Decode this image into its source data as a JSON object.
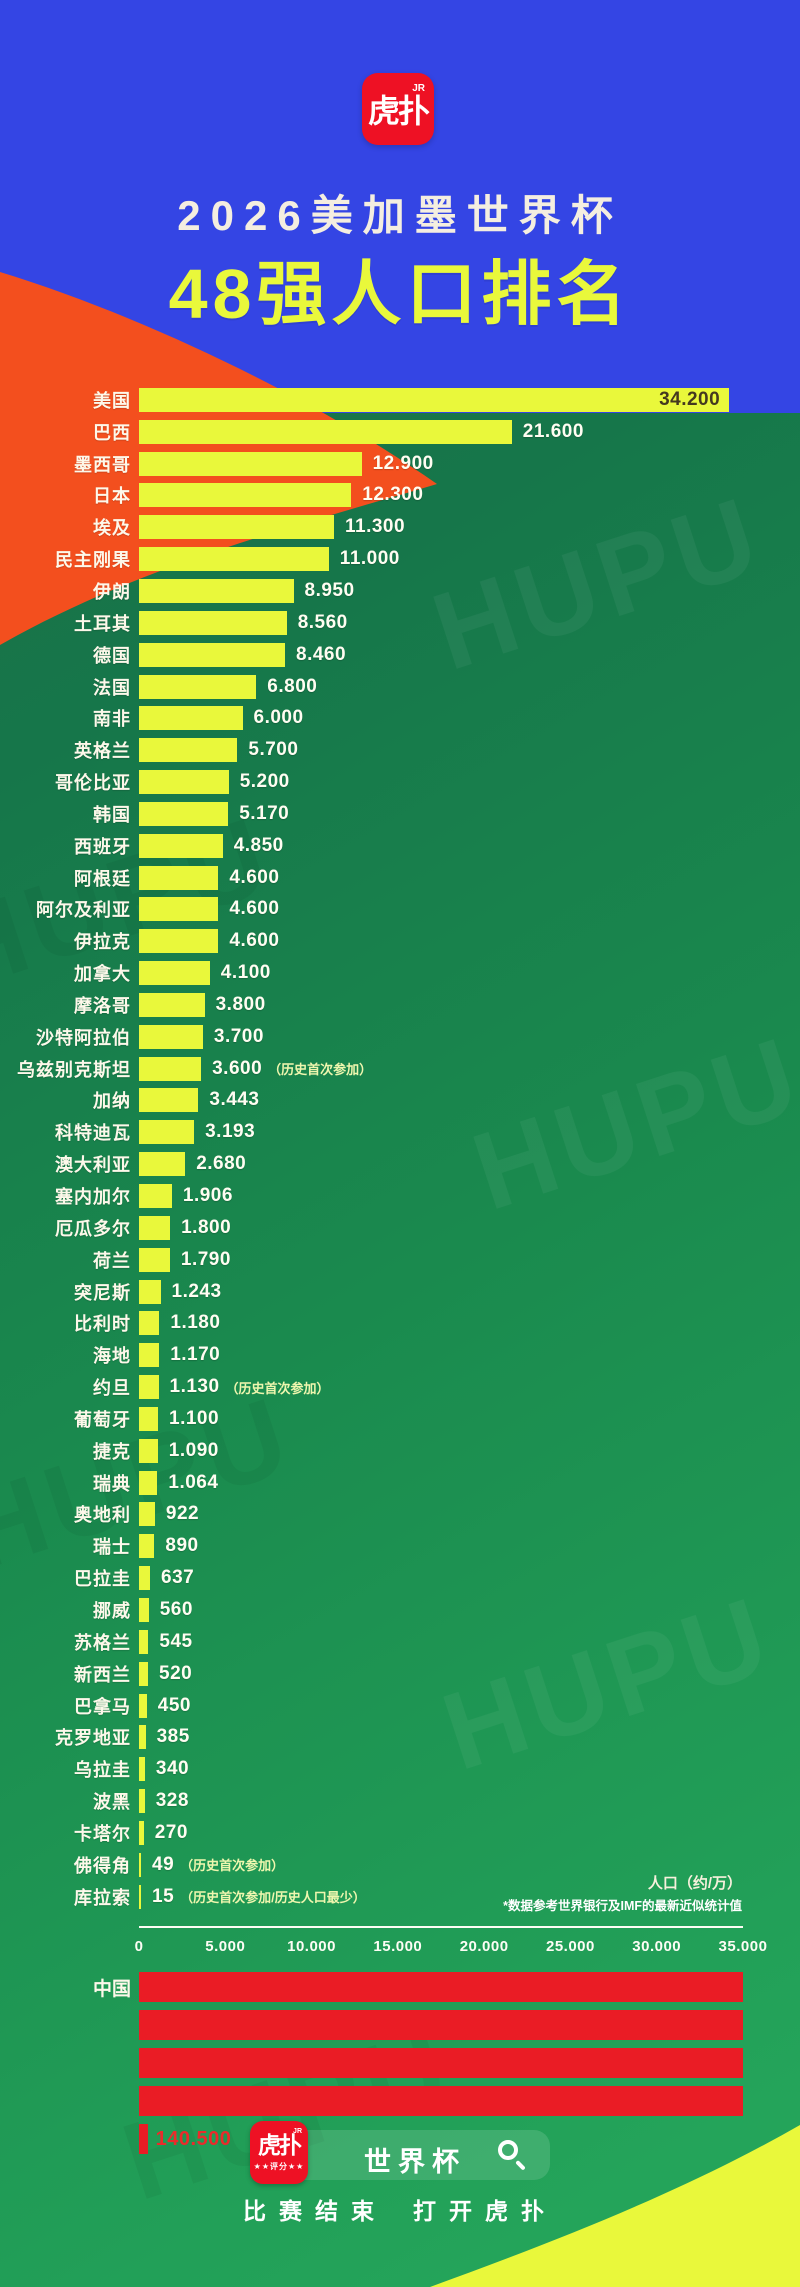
{
  "header": {
    "logo_text": "虎扑",
    "logo_badge": "JR",
    "title_line1": "2026美加墨世界杯",
    "title_line2": "48强人口排名"
  },
  "chart_data": {
    "type": "bar",
    "orientation": "horizontal",
    "title": "2026美加墨世界杯 48强人口排名",
    "xlabel_unit_note": "人口（约/万）",
    "source_note": "*数据参考世界银行及IMF的最新近似统计值",
    "xlim": [
      0,
      35000
    ],
    "x_ticks": [
      "0",
      "5.000",
      "10.000",
      "15.000",
      "20.000",
      "25.000",
      "30.000",
      "35.000"
    ],
    "x_tick_values": [
      0,
      5000,
      10000,
      15000,
      20000,
      25000,
      30000,
      35000
    ],
    "grid": false,
    "bar_color": "#e9f83b",
    "rows": [
      {
        "label": "美国",
        "value": 34200,
        "display": "34.200",
        "value_inside": true
      },
      {
        "label": "巴西",
        "value": 21600,
        "display": "21.600"
      },
      {
        "label": "墨西哥",
        "value": 12900,
        "display": "12.900"
      },
      {
        "label": "日本",
        "value": 12300,
        "display": "12.300"
      },
      {
        "label": "埃及",
        "value": 11300,
        "display": "11.300"
      },
      {
        "label": "民主刚果",
        "value": 11000,
        "display": "11.000"
      },
      {
        "label": "伊朗",
        "value": 8950,
        "display": "8.950"
      },
      {
        "label": "土耳其",
        "value": 8560,
        "display": "8.560"
      },
      {
        "label": "德国",
        "value": 8460,
        "display": "8.460"
      },
      {
        "label": "法国",
        "value": 6800,
        "display": "6.800"
      },
      {
        "label": "南非",
        "value": 6000,
        "display": "6.000"
      },
      {
        "label": "英格兰",
        "value": 5700,
        "display": "5.700"
      },
      {
        "label": "哥伦比亚",
        "value": 5200,
        "display": "5.200"
      },
      {
        "label": "韩国",
        "value": 5170,
        "display": "5.170"
      },
      {
        "label": "西班牙",
        "value": 4850,
        "display": "4.850"
      },
      {
        "label": "阿根廷",
        "value": 4600,
        "display": "4.600"
      },
      {
        "label": "阿尔及利亚",
        "value": 4600,
        "display": "4.600"
      },
      {
        "label": "伊拉克",
        "value": 4600,
        "display": "4.600"
      },
      {
        "label": "加拿大",
        "value": 4100,
        "display": "4.100"
      },
      {
        "label": "摩洛哥",
        "value": 3800,
        "display": "3.800"
      },
      {
        "label": "沙特阿拉伯",
        "value": 3700,
        "display": "3.700"
      },
      {
        "label": "乌兹别克斯坦",
        "value": 3600,
        "display": "3.600",
        "note": "（历史首次参加）"
      },
      {
        "label": "加纳",
        "value": 3443,
        "display": "3.443"
      },
      {
        "label": "科特迪瓦",
        "value": 3193,
        "display": "3.193"
      },
      {
        "label": "澳大利亚",
        "value": 2680,
        "display": "2.680"
      },
      {
        "label": "塞内加尔",
        "value": 1906,
        "display": "1.906"
      },
      {
        "label": "厄瓜多尔",
        "value": 1800,
        "display": "1.800"
      },
      {
        "label": "荷兰",
        "value": 1790,
        "display": "1.790"
      },
      {
        "label": "突尼斯",
        "value": 1243,
        "display": "1.243"
      },
      {
        "label": "比利时",
        "value": 1180,
        "display": "1.180"
      },
      {
        "label": "海地",
        "value": 1170,
        "display": "1.170"
      },
      {
        "label": "约旦",
        "value": 1130,
        "display": "1.130",
        "note": "（历史首次参加）"
      },
      {
        "label": "葡萄牙",
        "value": 1100,
        "display": "1.100"
      },
      {
        "label": "捷克",
        "value": 1090,
        "display": "1.090"
      },
      {
        "label": "瑞典",
        "value": 1064,
        "display": "1.064"
      },
      {
        "label": "奥地利",
        "value": 922,
        "display": "922"
      },
      {
        "label": "瑞士",
        "value": 890,
        "display": "890"
      },
      {
        "label": "巴拉圭",
        "value": 637,
        "display": "637"
      },
      {
        "label": "挪威",
        "value": 560,
        "display": "560"
      },
      {
        "label": "苏格兰",
        "value": 545,
        "display": "545"
      },
      {
        "label": "新西兰",
        "value": 520,
        "display": "520"
      },
      {
        "label": "巴拿马",
        "value": 450,
        "display": "450"
      },
      {
        "label": "克罗地亚",
        "value": 385,
        "display": "385"
      },
      {
        "label": "乌拉圭",
        "value": 340,
        "display": "340"
      },
      {
        "label": "波黑",
        "value": 328,
        "display": "328"
      },
      {
        "label": "卡塔尔",
        "value": 270,
        "display": "270"
      },
      {
        "label": "佛得角",
        "value": 49,
        "display": "49",
        "note": "（历史首次参加）"
      },
      {
        "label": "库拉索",
        "value": 15,
        "display": "15",
        "note": "（历史首次参加/历史人口最少）"
      }
    ],
    "comparison": {
      "label": "中国",
      "value": 140500,
      "display": "140.500",
      "bar_color": "#ea1c25",
      "wrapped_segments": [
        35000,
        35000,
        35000,
        35000,
        500
      ]
    }
  },
  "footer": {
    "logo_text": "虎扑",
    "logo_badge": "JR",
    "logo_sub": "★★评分★★",
    "search_text": "世界杯",
    "slogan_part1": "比赛结束",
    "slogan_part2": "打开虎扑"
  },
  "watermark": "HUPU",
  "colors": {
    "background_blue": "#3445e4",
    "background_green_top": "#1e6f46",
    "background_green_bottom": "#26a85c",
    "accent_orange": "#f34f1e",
    "bar_yellow": "#e9f83b",
    "china_red": "#ea1c25",
    "title_cream": "#f4eee0",
    "value_white": "#fffdf2",
    "inside_value_dark": "#44391f"
  }
}
